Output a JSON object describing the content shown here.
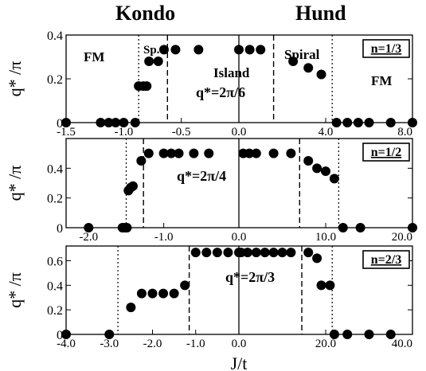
{
  "header": {
    "left_title": "Kondo",
    "right_title": "Hund"
  },
  "axis_labels": {
    "x": "J/t",
    "y": "q* /π"
  },
  "chart_data": [
    {
      "type": "scatter",
      "density_label": "n=1/3",
      "ylim": [
        0,
        0.4
      ],
      "yticks": [
        "0",
        "0.2",
        "0.4"
      ],
      "kondo": {
        "xlim": [
          -1.5,
          0
        ],
        "xticks": [
          "-1.5",
          "-1.0",
          "-0.5",
          "0.0"
        ],
        "points": [
          [
            -1.5,
            0
          ],
          [
            -1.2,
            0
          ],
          [
            -1.13,
            0
          ],
          [
            -1.07,
            0
          ],
          [
            -1.0,
            0
          ],
          [
            -0.9,
            0
          ],
          [
            -0.87,
            0.167
          ],
          [
            -0.83,
            0.167
          ],
          [
            -0.8,
            0.167
          ],
          [
            -0.78,
            0.28
          ],
          [
            -0.7,
            0.28
          ],
          [
            -0.65,
            0.333
          ],
          [
            -0.55,
            0.333
          ],
          [
            -0.35,
            0.333
          ]
        ],
        "dotted_line_x": -0.87,
        "dashed_line_x": -0.62
      },
      "hund": {
        "xlim": [
          0,
          8
        ],
        "xticks": [
          "0.0",
          "4.0",
          "8.0"
        ],
        "points": [
          [
            0,
            0.333
          ],
          [
            0.5,
            0.333
          ],
          [
            1.0,
            0.333
          ],
          [
            2.5,
            0.28
          ],
          [
            3.2,
            0.25
          ],
          [
            3.8,
            0.22
          ],
          [
            4.5,
            0
          ],
          [
            5.0,
            0
          ],
          [
            5.5,
            0
          ],
          [
            6.0,
            0
          ],
          [
            7.0,
            0
          ],
          [
            8.0,
            0
          ]
        ],
        "dashed_line_x": 1.6,
        "dotted_line_x": 4.3
      },
      "annotations": [
        "FM",
        "Sp.",
        "Island",
        "q*=2π/6",
        "Spiral",
        "FM"
      ]
    },
    {
      "type": "scatter",
      "density_label": "n=1/2",
      "ylim": [
        0,
        0.6
      ],
      "yticks": [
        "0",
        "0.2",
        "0.4"
      ],
      "kondo": {
        "xlim": [
          -2.3,
          0
        ],
        "xticks": [
          "-2.0",
          "-1.0",
          "0.0"
        ],
        "points": [
          [
            -2.0,
            0
          ],
          [
            -1.55,
            0
          ],
          [
            -1.52,
            0
          ],
          [
            -1.49,
            0
          ],
          [
            -1.47,
            0.25
          ],
          [
            -1.44,
            0.27
          ],
          [
            -1.41,
            0.28
          ],
          [
            -1.3,
            0.45
          ],
          [
            -1.2,
            0.5
          ],
          [
            -1.0,
            0.5
          ],
          [
            -0.9,
            0.5
          ],
          [
            -0.8,
            0.5
          ],
          [
            -0.6,
            0.5
          ],
          [
            -0.4,
            0.5
          ]
        ],
        "dotted_line_x": -1.5,
        "dashed_line_x": -1.27
      },
      "hund": {
        "xlim": [
          0,
          20
        ],
        "xticks": [
          "0.0",
          "10.0",
          "20.0"
        ],
        "points": [
          [
            0.5,
            0.5
          ],
          [
            1.2,
            0.5
          ],
          [
            2.0,
            0.5
          ],
          [
            4.0,
            0.5
          ],
          [
            6.0,
            0.5
          ],
          [
            8.0,
            0.45
          ],
          [
            9.0,
            0.4
          ],
          [
            10.0,
            0.38
          ],
          [
            11.0,
            0.33
          ],
          [
            12.0,
            0
          ],
          [
            14.0,
            0
          ],
          [
            20.0,
            0
          ]
        ],
        "dashed_line_x": 7.0,
        "dotted_line_x": 11.5
      },
      "annotations": [
        "q*=2π/4"
      ]
    },
    {
      "type": "scatter",
      "density_label": "n=2/3",
      "ylim": [
        0,
        0.72
      ],
      "yticks": [
        "0",
        "0.2",
        "0.4",
        "0.6"
      ],
      "kondo": {
        "xlim": [
          -4.0,
          0
        ],
        "xticks": [
          "-4.0",
          "-3.0",
          "-2.0",
          "-1.0",
          "0.0"
        ],
        "points": [
          [
            -4.0,
            0
          ],
          [
            -3.0,
            0
          ],
          [
            -2.5,
            0.22
          ],
          [
            -2.25,
            0.333
          ],
          [
            -2.0,
            0.333
          ],
          [
            -1.75,
            0.333
          ],
          [
            -1.5,
            0.333
          ],
          [
            -1.25,
            0.4
          ],
          [
            -1.0,
            0.667
          ],
          [
            -0.75,
            0.667
          ],
          [
            -0.5,
            0.667
          ],
          [
            -0.25,
            0.667
          ],
          [
            0.0,
            0.667
          ]
        ],
        "dotted_line_x": -2.8,
        "dashed_line_x": -1.15
      },
      "hund": {
        "xlim": [
          0,
          40
        ],
        "xticks": [
          "0.0",
          "20.0",
          "40.0"
        ],
        "points": [
          [
            0.5,
            0.667
          ],
          [
            2.0,
            0.667
          ],
          [
            4.0,
            0.667
          ],
          [
            6.0,
            0.667
          ],
          [
            8.0,
            0.667
          ],
          [
            10.0,
            0.667
          ],
          [
            12.0,
            0.667
          ],
          [
            16.0,
            0.667
          ],
          [
            18.0,
            0.62
          ],
          [
            19.0,
            0.4
          ],
          [
            21.0,
            0.4
          ],
          [
            22.0,
            0
          ],
          [
            25.0,
            0
          ],
          [
            30.0,
            0
          ],
          [
            35.0,
            0
          ]
        ],
        "dashed_line_x": 14.5,
        "dotted_line_x": 21.5
      },
      "annotations": [
        "q*=2π/3"
      ]
    }
  ]
}
